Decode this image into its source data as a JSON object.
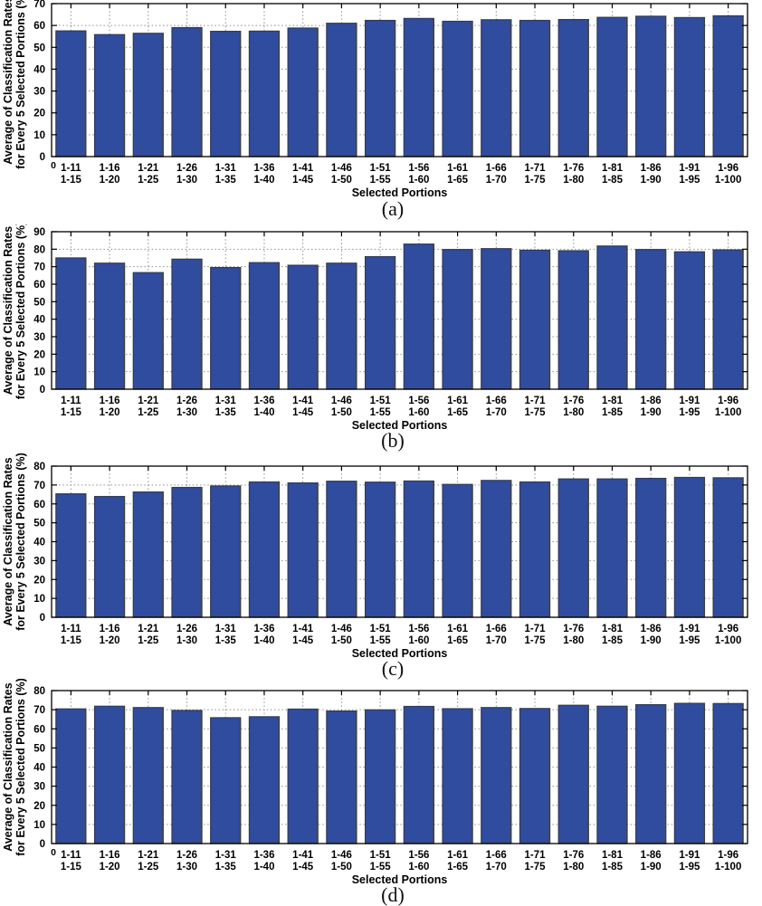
{
  "figure_title": "",
  "style": {
    "background": "#ffffff",
    "bar_fill": "#304C9E",
    "bar_edge": "#3d3d3d",
    "grid_color": "#8f8f8f",
    "axis_color": "#000000",
    "text_color": "#000000"
  },
  "chart_data": [
    {
      "type": "bar",
      "caption": "(a)",
      "title": "",
      "xlabel": "Selected Portions",
      "ylabel_line1": "Average of Classification Rates",
      "ylabel_line2": "for Every 5 Selected Portions (%)",
      "ylim": [
        0,
        70
      ],
      "ytick_step": 10,
      "grid": true,
      "origin_zero_label": "0",
      "categories": [
        [
          "1-11",
          "1-15"
        ],
        [
          "1-16",
          "1-20"
        ],
        [
          "1-21",
          "1-25"
        ],
        [
          "1-26",
          "1-30"
        ],
        [
          "1-31",
          "1-35"
        ],
        [
          "1-36",
          "1-40"
        ],
        [
          "1-41",
          "1-45"
        ],
        [
          "1-46",
          "1-50"
        ],
        [
          "1-51",
          "1-55"
        ],
        [
          "1-56",
          "1-60"
        ],
        [
          "1-61",
          "1-65"
        ],
        [
          "1-66",
          "1-70"
        ],
        [
          "1-71",
          "1-75"
        ],
        [
          "1-76",
          "1-80"
        ],
        [
          "1-81",
          "1-85"
        ],
        [
          "1-86",
          "1-90"
        ],
        [
          "1-91",
          "1-95"
        ],
        [
          "1-96",
          "1-100"
        ]
      ],
      "values": [
        57.5,
        55.8,
        56.4,
        59.0,
        57.3,
        57.4,
        58.8,
        61.0,
        62.3,
        63.2,
        61.9,
        62.6,
        62.3,
        62.7,
        63.7,
        64.2,
        63.6,
        64.4
      ]
    },
    {
      "type": "bar",
      "caption": "(b)",
      "title": "",
      "xlabel": "Selected Portions",
      "ylabel_line1": "Average of Classification Rates",
      "ylabel_line2": "for Every 5 Selected Portions (%)",
      "ylim": [
        0,
        90
      ],
      "ytick_step": 10,
      "grid": true,
      "origin_zero_label": "",
      "categories": [
        [
          "1-11",
          "1-15"
        ],
        [
          "1-16",
          "1-20"
        ],
        [
          "1-21",
          "1-25"
        ],
        [
          "1-26",
          "1-30"
        ],
        [
          "1-31",
          "1-35"
        ],
        [
          "1-36",
          "1-40"
        ],
        [
          "1-41",
          "1-45"
        ],
        [
          "1-46",
          "1-50"
        ],
        [
          "1-51",
          "1-55"
        ],
        [
          "1-56",
          "1-60"
        ],
        [
          "1-61",
          "1-65"
        ],
        [
          "1-66",
          "1-70"
        ],
        [
          "1-71",
          "1-75"
        ],
        [
          "1-76",
          "1-80"
        ],
        [
          "1-81",
          "1-85"
        ],
        [
          "1-86",
          "1-90"
        ],
        [
          "1-91",
          "1-95"
        ],
        [
          "1-96",
          "1-100"
        ]
      ],
      "values": [
        75.0,
        72.0,
        66.6,
        74.3,
        69.5,
        72.3,
        70.8,
        72.0,
        75.7,
        82.9,
        79.8,
        80.3,
        79.4,
        79.1,
        81.8,
        79.8,
        78.5,
        79.6
      ]
    },
    {
      "type": "bar",
      "caption": "(c)",
      "title": "",
      "xlabel": "Selected Portions",
      "ylabel_line1": "Average of Classification Rates",
      "ylabel_line2": "for Every 5 Selected Portions (%)",
      "ylim": [
        0,
        80
      ],
      "ytick_step": 10,
      "grid": true,
      "origin_zero_label": "",
      "categories": [
        [
          "1-11",
          "1-15"
        ],
        [
          "1-16",
          "1-20"
        ],
        [
          "1-21",
          "1-25"
        ],
        [
          "1-26",
          "1-30"
        ],
        [
          "1-31",
          "1-35"
        ],
        [
          "1-36",
          "1-40"
        ],
        [
          "1-41",
          "1-45"
        ],
        [
          "1-46",
          "1-50"
        ],
        [
          "1-51",
          "1-55"
        ],
        [
          "1-56",
          "1-60"
        ],
        [
          "1-61",
          "1-65"
        ],
        [
          "1-66",
          "1-70"
        ],
        [
          "1-71",
          "1-75"
        ],
        [
          "1-76",
          "1-80"
        ],
        [
          "1-81",
          "1-85"
        ],
        [
          "1-86",
          "1-90"
        ],
        [
          "1-91",
          "1-95"
        ],
        [
          "1-96",
          "1-100"
        ]
      ],
      "values": [
        65.3,
        63.9,
        66.3,
        68.7,
        69.5,
        71.6,
        71.1,
        72.0,
        71.5,
        72.1,
        70.3,
        72.4,
        71.6,
        73.2,
        73.2,
        73.5,
        74.0,
        73.8
      ]
    },
    {
      "type": "bar",
      "caption": "(d)",
      "title": "",
      "xlabel": "Selected Portions",
      "ylabel_line1": "Average of Classification Rates",
      "ylabel_line2": "for Every 5 Selected Portions (%)",
      "ylim": [
        0,
        80
      ],
      "ytick_step": 10,
      "grid": true,
      "origin_zero_label": "0",
      "categories": [
        [
          "1-11",
          "1-15"
        ],
        [
          "1-16",
          "1-20"
        ],
        [
          "1-21",
          "1-25"
        ],
        [
          "1-26",
          "1-30"
        ],
        [
          "1-31",
          "1-35"
        ],
        [
          "1-36",
          "1-40"
        ],
        [
          "1-41",
          "1-45"
        ],
        [
          "1-46",
          "1-50"
        ],
        [
          "1-51",
          "1-55"
        ],
        [
          "1-56",
          "1-60"
        ],
        [
          "1-61",
          "1-65"
        ],
        [
          "1-66",
          "1-70"
        ],
        [
          "1-71",
          "1-75"
        ],
        [
          "1-76",
          "1-80"
        ],
        [
          "1-81",
          "1-85"
        ],
        [
          "1-86",
          "1-90"
        ],
        [
          "1-91",
          "1-95"
        ],
        [
          "1-96",
          "1-100"
        ]
      ],
      "values": [
        70.4,
        71.8,
        71.1,
        69.6,
        65.8,
        66.3,
        70.3,
        69.3,
        69.9,
        71.7,
        70.5,
        71.1,
        70.6,
        72.3,
        71.8,
        72.6,
        73.3,
        73.2
      ]
    }
  ]
}
